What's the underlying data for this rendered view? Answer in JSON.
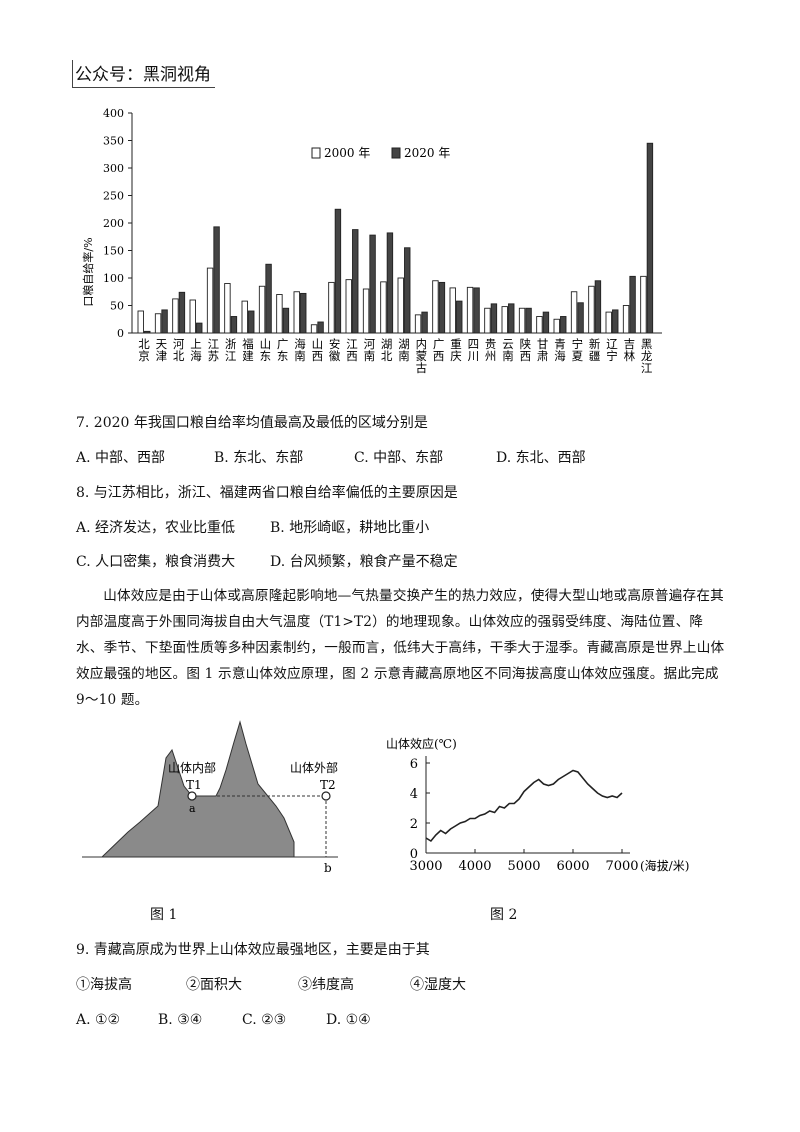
{
  "watermark": "公众号：黑洞视角",
  "chart_data": {
    "type": "bar",
    "ylabel": "口粮自给率/%",
    "ylim": [
      0,
      400
    ],
    "yticks": [
      0,
      50,
      100,
      150,
      200,
      250,
      300,
      350,
      400
    ],
    "categories": [
      "北京",
      "天津",
      "河北",
      "上海",
      "江苏",
      "浙江",
      "福建",
      "山东",
      "广东",
      "海南",
      "山西",
      "安徽",
      "江西",
      "河南",
      "湖北",
      "湖南",
      "内蒙古",
      "广西",
      "重庆",
      "四川",
      "贵州",
      "云南",
      "陕西",
      "甘肃",
      "青海",
      "宁夏",
      "新疆",
      "辽宁",
      "吉林",
      "黑龙江"
    ],
    "series": [
      {
        "name": "2000 年",
        "color": "#ffffff",
        "values": [
          40,
          35,
          62,
          60,
          118,
          90,
          58,
          85,
          70,
          75,
          15,
          92,
          97,
          80,
          93,
          100,
          33,
          95,
          82,
          83,
          45,
          48,
          45,
          30,
          25,
          75,
          85,
          38,
          50,
          103
        ]
      },
      {
        "name": "2020 年",
        "color": "#444444",
        "values": [
          3,
          42,
          74,
          18,
          193,
          30,
          40,
          125,
          45,
          72,
          20,
          225,
          188,
          178,
          182,
          155,
          38,
          92,
          58,
          82,
          53,
          53,
          45,
          38,
          30,
          55,
          95,
          42,
          103,
          345
        ]
      }
    ],
    "legend_position": "top-center"
  },
  "questions": {
    "q7": {
      "stem": "7. 2020 年我国口粮自给率均值最高及最低的区域分别是",
      "options": [
        "A. 中部、西部",
        "B. 东北、东部",
        "C. 中部、东部",
        "D. 东北、西部"
      ]
    },
    "q8": {
      "stem": "8. 与江苏相比，浙江、福建两省口粮自给率偏低的主要原因是",
      "options": [
        "A. 经济发达，农业比重低",
        "B. 地形崎岖，耕地比重小",
        "C. 人口密集，粮食消费大",
        "D. 台风频繁，粮食产量不稳定"
      ]
    },
    "passage": "山体效应是由于山体或高原隆起影响地—气热量交换产生的热力效应，使得大型山地或高原普遍存在其内部温度高于外围同海拔自由大气温度（T1>T2）的地理现象。山体效应的强弱受纬度、海陆位置、降水、季节、下垫面性质等多种因素制约，一般而言，低纬大于高纬，干季大于湿季。青藏高原是世界上山体效应最强的地区。图 1 示意山体效应原理，图 2 示意青藏高原地区不同海拔高度山体效应强度。据此完成 9～10 题。",
    "q9": {
      "stem": "9. 青藏高原成为世界上山体效应最强地区，主要是由于其",
      "items": [
        "①海拔高",
        "②面积大",
        "③纬度高",
        "④湿度大"
      ],
      "options": [
        "A. ①②",
        "B. ③④",
        "C. ②③",
        "D. ①④"
      ]
    }
  },
  "figure1": {
    "caption": "图 1",
    "inner_label": "山体内部",
    "outer_label": "山体外部",
    "t1": "T1",
    "t2": "T2",
    "a": "a",
    "b": "b"
  },
  "figure2": {
    "caption": "图 2",
    "ylabel": "山体效应(℃)",
    "xlabel": "(海拔/米)",
    "xticks": [
      3000,
      4000,
      5000,
      6000,
      7000
    ],
    "yticks": [
      0,
      2,
      4,
      6
    ],
    "chart_data": {
      "type": "line",
      "x": [
        3000,
        3100,
        3200,
        3300,
        3400,
        3500,
        3600,
        3700,
        3800,
        3900,
        4000,
        4100,
        4200,
        4300,
        4400,
        4500,
        4600,
        4700,
        4800,
        4900,
        5000,
        5100,
        5200,
        5300,
        5400,
        5500,
        5600,
        5700,
        5800,
        5900,
        6000,
        6100,
        6200,
        6300,
        6400,
        6500,
        6600,
        6700,
        6800,
        6900,
        7000
      ],
      "y": [
        1.0,
        0.8,
        1.2,
        1.5,
        1.3,
        1.6,
        1.8,
        2.0,
        2.1,
        2.3,
        2.3,
        2.5,
        2.6,
        2.8,
        2.7,
        3.1,
        3.0,
        3.3,
        3.3,
        3.6,
        4.1,
        4.4,
        4.7,
        4.9,
        4.6,
        4.5,
        4.6,
        4.9,
        5.1,
        5.3,
        5.5,
        5.4,
        5.0,
        4.6,
        4.3,
        4.0,
        3.8,
        3.7,
        3.8,
        3.7,
        4.0
      ],
      "xlim": [
        3000,
        7000
      ],
      "ylim": [
        0,
        6
      ]
    }
  }
}
